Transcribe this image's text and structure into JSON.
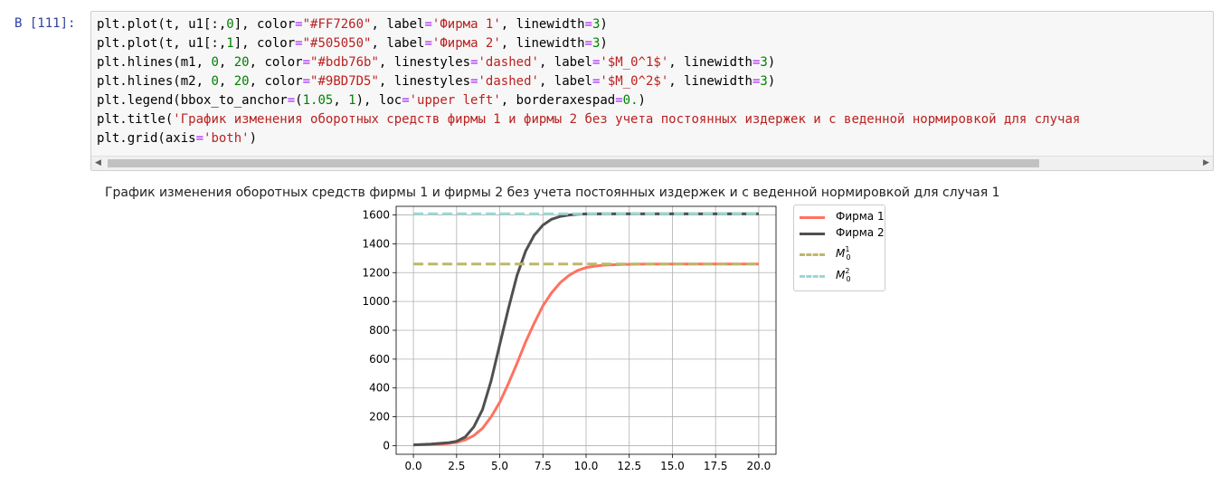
{
  "cell": {
    "prompt": "В [111]:",
    "code_lines": [
      [
        [
          "plt.plot(t, u1[:,",
          ""
        ],
        [
          "0",
          "num"
        ],
        [
          "], color=",
          ""
        ],
        [
          "\"#FF7260\"",
          "str"
        ],
        [
          ", label=",
          ""
        ],
        [
          "'Фирма 1'",
          "str"
        ],
        [
          ", linewidth=",
          ""
        ],
        [
          "3",
          "num"
        ],
        [
          ")",
          ""
        ]
      ],
      [
        [
          "plt.plot(t, u1[:,",
          ""
        ],
        [
          "1",
          "num"
        ],
        [
          "], color=",
          ""
        ],
        [
          "\"#505050\"",
          "str"
        ],
        [
          ", label=",
          ""
        ],
        [
          "'Фирма 2'",
          "str"
        ],
        [
          ", linewidth=",
          ""
        ],
        [
          "3",
          "num"
        ],
        [
          ")",
          ""
        ]
      ],
      [
        [
          "plt.hlines(m1, ",
          ""
        ],
        [
          "0",
          "num"
        ],
        [
          ", ",
          ""
        ],
        [
          "20",
          "num"
        ],
        [
          ", color=",
          ""
        ],
        [
          "\"#bdb76b\"",
          "str"
        ],
        [
          ", linestyles=",
          ""
        ],
        [
          "'dashed'",
          "str"
        ],
        [
          ", label=",
          ""
        ],
        [
          "'$M_0^1$'",
          "str"
        ],
        [
          ", linewidth=",
          ""
        ],
        [
          "3",
          "num"
        ],
        [
          ")",
          ""
        ]
      ],
      [
        [
          "plt.hlines(m2, ",
          ""
        ],
        [
          "0",
          "num"
        ],
        [
          ", ",
          ""
        ],
        [
          "20",
          "num"
        ],
        [
          ", color=",
          ""
        ],
        [
          "\"#9BD7D5\"",
          "str"
        ],
        [
          ", linestyles=",
          ""
        ],
        [
          "'dashed'",
          "str"
        ],
        [
          ", label=",
          ""
        ],
        [
          "'$M_0^2$'",
          "str"
        ],
        [
          ", linewidth=",
          ""
        ],
        [
          "3",
          "num"
        ],
        [
          ")",
          ""
        ]
      ],
      [
        [
          "plt.legend(bbox_to_anchor=(",
          ""
        ],
        [
          "1.05",
          "num"
        ],
        [
          ", ",
          ""
        ],
        [
          "1",
          "num"
        ],
        [
          "), loc=",
          ""
        ],
        [
          "'upper left'",
          "str"
        ],
        [
          ", borderaxespad=",
          ""
        ],
        [
          "0.",
          "num"
        ],
        [
          ")",
          ""
        ]
      ],
      [
        [
          "plt.title(",
          ""
        ],
        [
          "'График изменения оборотных средств фирмы 1 и фирмы 2 без учета постоянных издержек и с веденной нормировкой для случая",
          ""
        ]
      ],
      [
        [
          "plt.grid(axis=",
          ""
        ],
        [
          "'both'",
          "str"
        ],
        [
          ")",
          ""
        ]
      ]
    ]
  },
  "chart_data": {
    "type": "line",
    "title": "График изменения оборотных средств фирмы 1 и фирмы 2 без учета постоянных издержек и с веденной нормировкой для случая 1",
    "xlim": [
      -1.0,
      21.0
    ],
    "ylim": [
      -60,
      1660
    ],
    "x_ticks": [
      0.0,
      2.5,
      5.0,
      7.5,
      10.0,
      12.5,
      15.0,
      17.5,
      20.0
    ],
    "x_tick_labels": [
      "0.0",
      "2.5",
      "5.0",
      "7.5",
      "10.0",
      "12.5",
      "15.0",
      "17.5",
      "20.0"
    ],
    "y_ticks": [
      0,
      200,
      400,
      600,
      800,
      1000,
      1200,
      1400,
      1600
    ],
    "y_tick_labels": [
      "0",
      "200",
      "400",
      "600",
      "800",
      "1000",
      "1200",
      "1400",
      "1600"
    ],
    "grid": true,
    "legend_position": "outside-upper-right",
    "series": [
      {
        "name": "Фирма 1",
        "color": "#FF7260",
        "style": "solid",
        "kind": "line",
        "x": [
          0,
          1,
          2,
          2.5,
          3,
          3.5,
          4,
          4.5,
          5,
          5.5,
          6,
          6.5,
          7,
          7.5,
          8,
          8.5,
          9,
          9.5,
          10,
          10.5,
          11,
          12,
          13,
          15,
          17.5,
          20
        ],
        "y": [
          5,
          8,
          15,
          22,
          40,
          70,
          120,
          200,
          300,
          430,
          570,
          720,
          850,
          970,
          1060,
          1130,
          1180,
          1215,
          1235,
          1245,
          1252,
          1257,
          1259,
          1260,
          1260,
          1260
        ]
      },
      {
        "name": "Фирма 2",
        "color": "#505050",
        "style": "solid",
        "kind": "line",
        "x": [
          0,
          1,
          2,
          2.5,
          3,
          3.5,
          4,
          4.5,
          5,
          5.5,
          6,
          6.5,
          7,
          7.5,
          8,
          8.5,
          9,
          9.5,
          10,
          11,
          12.5,
          15,
          17.5,
          20
        ],
        "y": [
          5,
          10,
          20,
          30,
          60,
          130,
          250,
          450,
          700,
          950,
          1180,
          1350,
          1460,
          1530,
          1570,
          1590,
          1600,
          1605,
          1607,
          1608,
          1608,
          1608,
          1608,
          1608
        ]
      },
      {
        "name": "M_0^1",
        "color": "#bdb76b",
        "style": "dashed",
        "kind": "hline",
        "x": [
          0,
          20
        ],
        "y": [
          1260,
          1260
        ]
      },
      {
        "name": "M_0^2",
        "color": "#9BD7D5",
        "style": "dashed",
        "kind": "hline",
        "x": [
          0,
          20
        ],
        "y": [
          1608,
          1608
        ]
      }
    ]
  }
}
